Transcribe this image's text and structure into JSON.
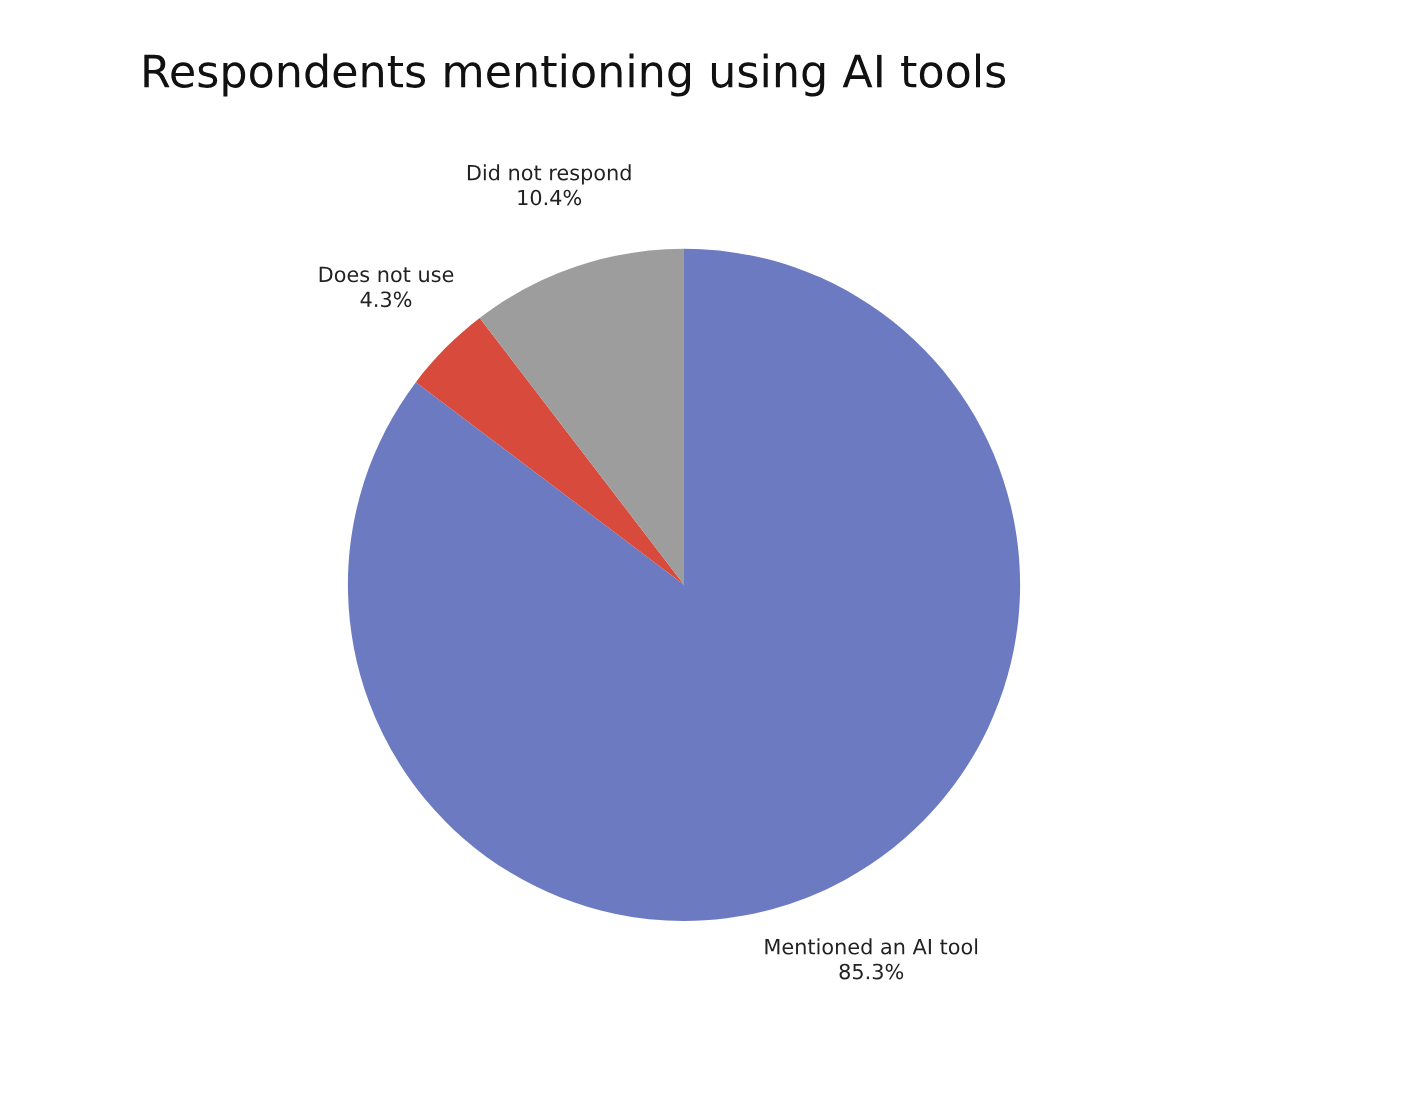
{
  "chart_data": {
    "type": "pie",
    "title": "Respondents mentioning using AI tools",
    "categories": [
      "Mentioned an AI tool",
      "Does not use",
      "Did not respond"
    ],
    "values": [
      85.3,
      4.3,
      10.4
    ],
    "colors": [
      "#6c7bc1",
      "#d74a3c",
      "#9d9d9d"
    ],
    "value_labels": [
      "85.3%",
      "4.3%",
      "10.4%"
    ],
    "legend": false
  }
}
